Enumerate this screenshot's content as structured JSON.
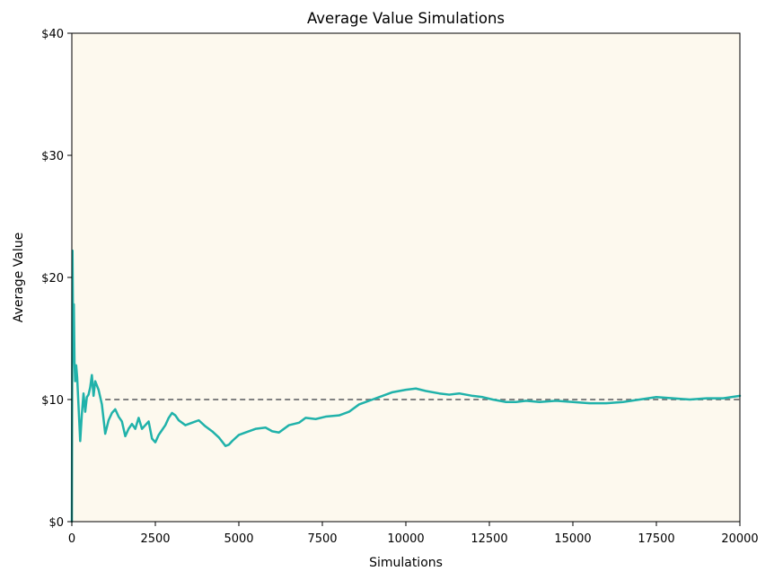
{
  "chart_data": {
    "type": "line",
    "title": "Average Value Simulations",
    "xlabel": "Simulations",
    "ylabel": "Average Value",
    "xlim": [
      0,
      20000
    ],
    "ylim": [
      0,
      40
    ],
    "x_ticks": [
      0,
      2500,
      5000,
      7500,
      10000,
      12500,
      15000,
      17500,
      20000
    ],
    "y_ticks": [
      0,
      10,
      20,
      30,
      40
    ],
    "y_tick_labels": [
      "$0",
      "$10",
      "$20",
      "$30",
      "$40"
    ],
    "grid": false,
    "background": "#fdf9ee",
    "reference_line": {
      "y": 10,
      "x_start": 1000,
      "x_end": 20000,
      "style": "dashed",
      "color": "#808080"
    },
    "series": [
      {
        "color": "#20b2aa",
        "x": [
          1,
          20,
          40,
          60,
          80,
          100,
          130,
          160,
          200,
          250,
          300,
          350,
          400,
          450,
          500,
          550,
          600,
          650,
          700,
          800,
          900,
          1000,
          1100,
          1200,
          1300,
          1400,
          1500,
          1600,
          1700,
          1800,
          1900,
          2000,
          2100,
          2200,
          2300,
          2400,
          2500,
          2600,
          2700,
          2800,
          2900,
          3000,
          3100,
          3200,
          3400,
          3600,
          3800,
          4000,
          4200,
          4400,
          4600,
          4700,
          4800,
          5000,
          5200,
          5500,
          5800,
          6000,
          6200,
          6500,
          6800,
          7000,
          7300,
          7600,
          8000,
          8300,
          8600,
          9000,
          9300,
          9600,
          10000,
          10300,
          10600,
          11000,
          11300,
          11600,
          12000,
          12300,
          12600,
          13000,
          13300,
          13600,
          14000,
          14500,
          15000,
          15500,
          16000,
          16500,
          17000,
          17500,
          18000,
          18500,
          19000,
          19500,
          20000
        ],
        "values": [
          0,
          22.2,
          15.0,
          17.8,
          13.0,
          11.5,
          12.8,
          11.8,
          9.5,
          6.6,
          8.8,
          10.5,
          9.0,
          10.2,
          10.4,
          11.0,
          12.0,
          10.3,
          11.5,
          10.8,
          9.6,
          7.2,
          8.3,
          8.9,
          9.2,
          8.6,
          8.2,
          7.0,
          7.6,
          8.0,
          7.6,
          8.5,
          7.6,
          7.9,
          8.2,
          6.8,
          6.5,
          7.1,
          7.5,
          7.9,
          8.5,
          8.9,
          8.7,
          8.3,
          7.9,
          8.1,
          8.3,
          7.8,
          7.4,
          6.9,
          6.2,
          6.3,
          6.6,
          7.1,
          7.3,
          7.6,
          7.7,
          7.4,
          7.3,
          7.9,
          8.1,
          8.5,
          8.4,
          8.6,
          8.7,
          9.0,
          9.6,
          10.0,
          10.3,
          10.6,
          10.8,
          10.9,
          10.7,
          10.5,
          10.4,
          10.5,
          10.3,
          10.2,
          10.0,
          9.8,
          9.8,
          9.9,
          9.8,
          9.9,
          9.8,
          9.7,
          9.7,
          9.8,
          10.0,
          10.2,
          10.1,
          10.0,
          10.1,
          10.1,
          10.3
        ]
      }
    ]
  }
}
